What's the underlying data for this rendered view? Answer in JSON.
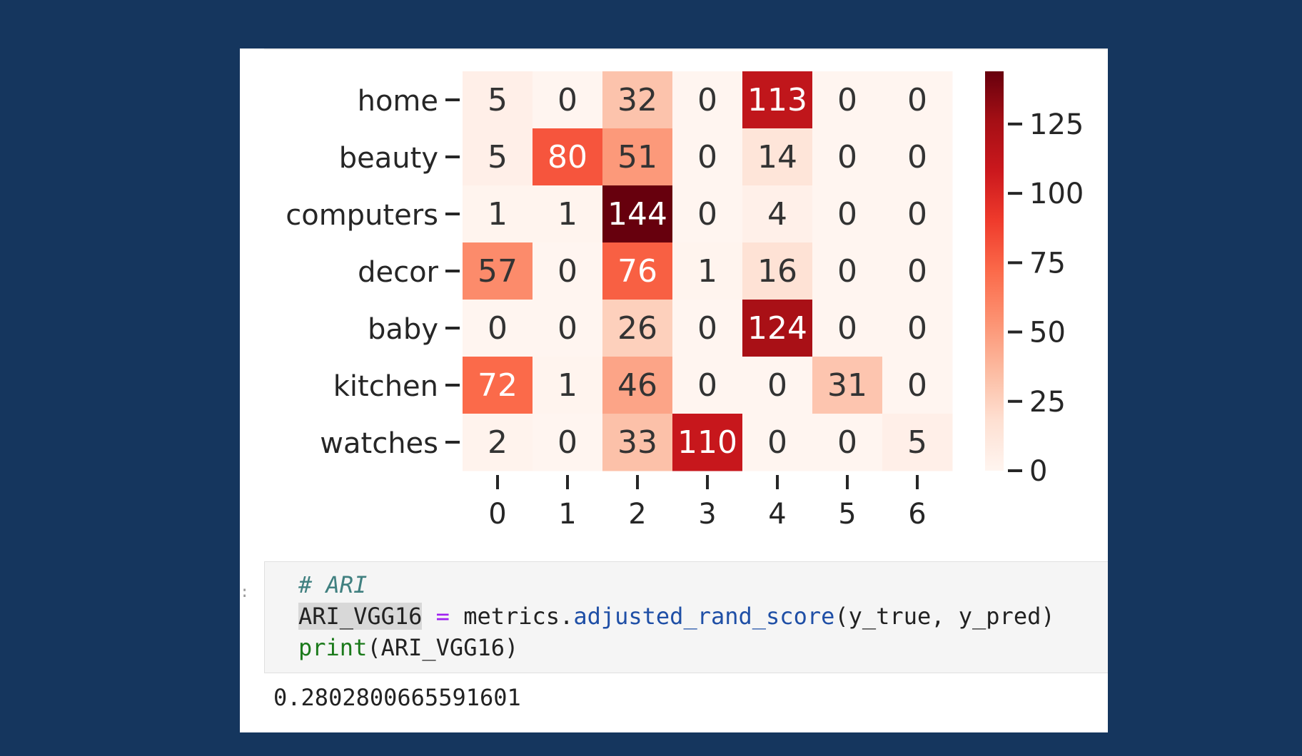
{
  "chart_data": {
    "type": "heatmap",
    "title": "",
    "xlabel": "",
    "ylabel": "",
    "x_categories": [
      "0",
      "1",
      "2",
      "3",
      "4",
      "5",
      "6"
    ],
    "y_categories": [
      "home",
      "beauty",
      "computers",
      "decor",
      "baby",
      "kitchen",
      "watches"
    ],
    "values": [
      [
        5,
        0,
        32,
        0,
        113,
        0,
        0
      ],
      [
        5,
        80,
        51,
        0,
        14,
        0,
        0
      ],
      [
        1,
        1,
        144,
        0,
        4,
        0,
        0
      ],
      [
        57,
        0,
        76,
        1,
        16,
        0,
        0
      ],
      [
        0,
        0,
        26,
        0,
        124,
        0,
        0
      ],
      [
        72,
        1,
        46,
        0,
        0,
        31,
        0
      ],
      [
        2,
        0,
        33,
        110,
        0,
        0,
        5
      ]
    ],
    "colormap": "Reds",
    "color_range": [
      0,
      144
    ],
    "colorbar_ticks": [
      0,
      25,
      50,
      75,
      100,
      125
    ],
    "annotations": true
  },
  "notebook": {
    "gutter_marker": ":",
    "code": {
      "comment": "# ARI",
      "assign_var": "ARI_VGG16",
      "assign_op": " = ",
      "module": "metrics.",
      "func": "adjusted_rand_score",
      "args": "(y_true, y_pred)",
      "print_fn": "print",
      "print_args": "(ARI_VGG16)"
    },
    "output": "0.2802800665591601"
  }
}
